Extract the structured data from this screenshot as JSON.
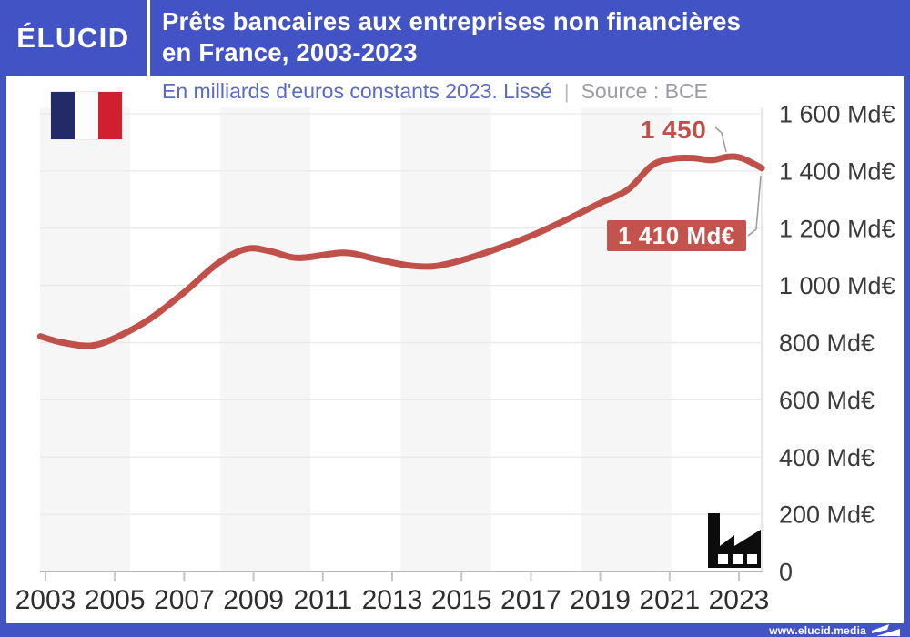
{
  "header": {
    "logo": "ÉLUCID",
    "title_line1": "Prêts bancaires aux entreprises non financières",
    "title_line2": "en France, 2003-2023"
  },
  "subtitle": {
    "main": "En milliards d'euros constants 2023. Lissé",
    "separator": "|",
    "source": "Source : BCE"
  },
  "annotations": {
    "peak_label": "1 450",
    "last_label": "1 410 Md€"
  },
  "footer": {
    "url": "www.elucid.media"
  },
  "icons": {
    "flag": "france-flag-icon",
    "factory": "factory-icon",
    "footer_mark": "elucid-flag-icon"
  },
  "colors": {
    "brand_blue": "#4254c5",
    "line_red": "#c0504a",
    "badge_red": "#c3544d",
    "subtitle_blue": "#5a6ac8",
    "source_gray": "#9c9ca4",
    "band_gray": "#f6f6f7",
    "grid_gray": "#e9e9e9",
    "axis_gray": "#9e9e9e",
    "tick_gray": "#c5c5c5",
    "x_label_color": "#2e2e2e",
    "y_label_color": "#3a3a3a",
    "leader_gray": "#9b9b9b",
    "flag_navy": "#222a68",
    "flag_red": "#d02030"
  },
  "chart_data": {
    "type": "line",
    "title": "Prêts bancaires aux entreprises non financières en France, 2003-2023",
    "subtitle": "En milliards d'euros constants 2023. Lissé",
    "source": "BCE",
    "y_unit": "Md€",
    "xlim": [
      2002.85,
      2023.66
    ],
    "ylim": [
      0,
      1600
    ],
    "grid": true,
    "legend": false,
    "series": [
      {
        "name": "Prêts bancaires aux entreprises non financières",
        "x": [
          2002.85,
          2003.5,
          2004.3,
          2005,
          2006,
          2007,
          2008,
          2008.8,
          2009.5,
          2010.3,
          2011.6,
          2012.5,
          2013.4,
          2014.2,
          2015,
          2016,
          2017,
          2018,
          2019,
          2019.8,
          2020.5,
          2021.1,
          2021.7,
          2022.2,
          2022.7,
          2023.1,
          2023.66
        ],
        "y": [
          822,
          800,
          789,
          816,
          882,
          976,
          1080,
          1128,
          1119,
          1096,
          1114,
          1093,
          1071,
          1067,
          1088,
          1127,
          1173,
          1228,
          1288,
          1335,
          1420,
          1443,
          1445,
          1438,
          1450,
          1444,
          1410
        ]
      }
    ],
    "annotations": [
      {
        "x": 2022.7,
        "y": 1450,
        "label": "1 450"
      },
      {
        "x": 2023.66,
        "y": 1410,
        "label": "1 410 Md€"
      }
    ],
    "x_ticks": [
      "2003",
      "2005",
      "2007",
      "2009",
      "2011",
      "2013",
      "2015",
      "2017",
      "2019",
      "2021",
      "2023"
    ],
    "y_ticks": [
      {
        "value": 1600,
        "label": "1 600 Md€"
      },
      {
        "value": 1400,
        "label": "1 400 Md€"
      },
      {
        "value": 1200,
        "label": "1 200 Md€"
      },
      {
        "value": 1000,
        "label": "1 000 Md€"
      },
      {
        "value": 800,
        "label": "800 Md€"
      },
      {
        "value": 600,
        "label": "600 Md€"
      },
      {
        "value": 400,
        "label": "400 Md€"
      },
      {
        "value": 200,
        "label": "200 Md€"
      },
      {
        "value": 0,
        "label": "0"
      }
    ]
  }
}
